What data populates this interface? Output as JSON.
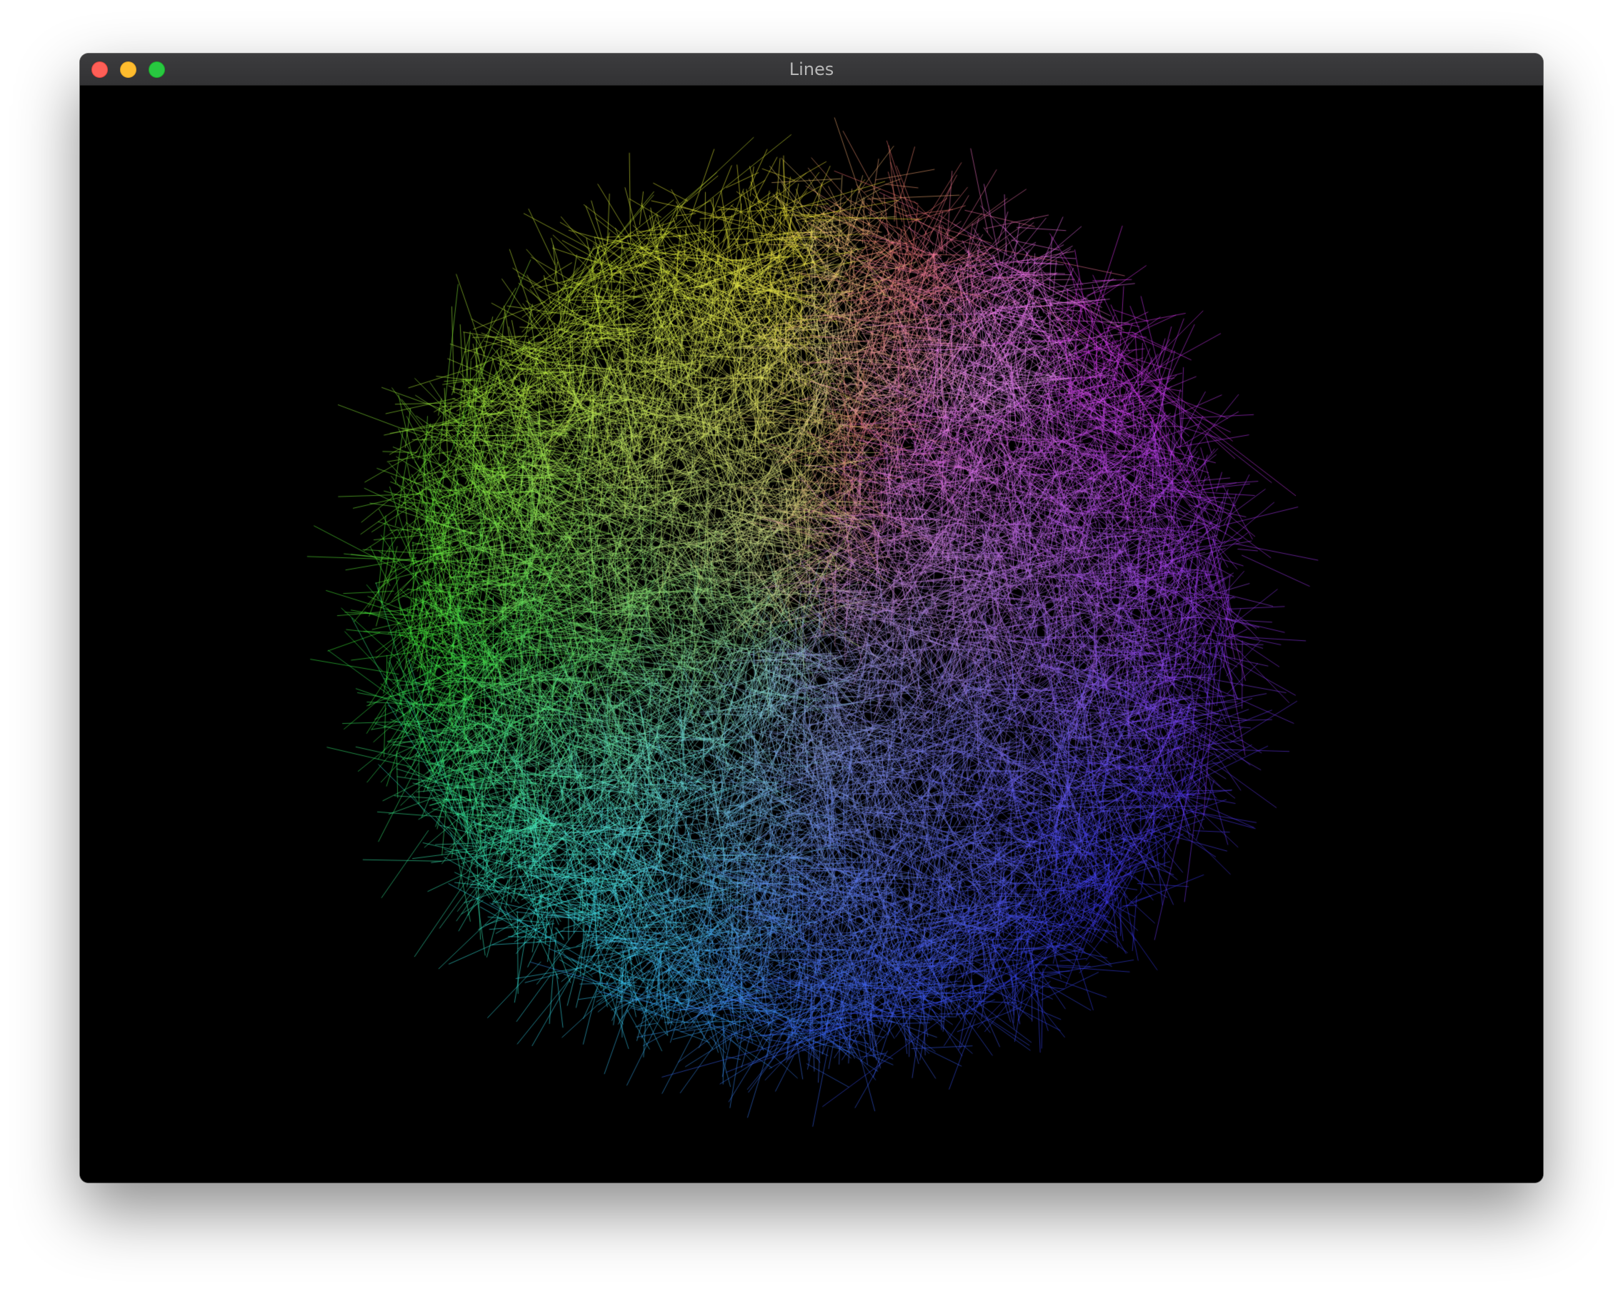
{
  "window": {
    "title": "Lines",
    "buttons": [
      "close",
      "minimize",
      "zoom"
    ]
  },
  "canvas": {
    "background": "#000000",
    "description_colors": {
      "top": "#ffffcc",
      "left": "#66ee55",
      "center": "#55dddd",
      "right": "#9966ff",
      "bottom": "#2255ff"
    }
  }
}
